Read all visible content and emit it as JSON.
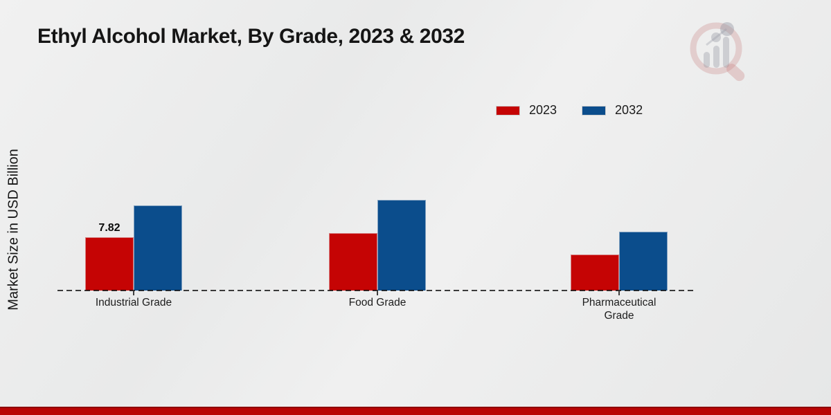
{
  "title": "Ethyl Alcohol Market, By Grade, 2023 & 2032",
  "y_axis_label": "Market Size in USD Billion",
  "legend": {
    "items": [
      {
        "label": "2023",
        "color": "#c50404"
      },
      {
        "label": "2032",
        "color": "#0b4d8c"
      }
    ]
  },
  "chart_data": {
    "type": "bar",
    "title": "Ethyl Alcohol Market, By Grade, 2023 & 2032",
    "categories": [
      "Industrial Grade",
      "Food Grade",
      "Pharmaceutical Grade"
    ],
    "series": [
      {
        "name": "2023",
        "color": "#c50404",
        "values": [
          7.82,
          8.4,
          5.3
        ]
      },
      {
        "name": "2032",
        "color": "#0b4d8c",
        "values": [
          12.5,
          13.3,
          8.6
        ]
      }
    ],
    "data_labels": [
      {
        "series": "2023",
        "category": "Industrial Grade",
        "text": "7.82"
      }
    ],
    "xlabel": "",
    "ylabel": "Market Size in USD Billion",
    "ylim": [
      0,
      15
    ],
    "grid": false,
    "legend_position": "top-right",
    "x_axis_style": "dashed-baseline-only"
  },
  "footer": {
    "bar_color": "#b90404"
  }
}
